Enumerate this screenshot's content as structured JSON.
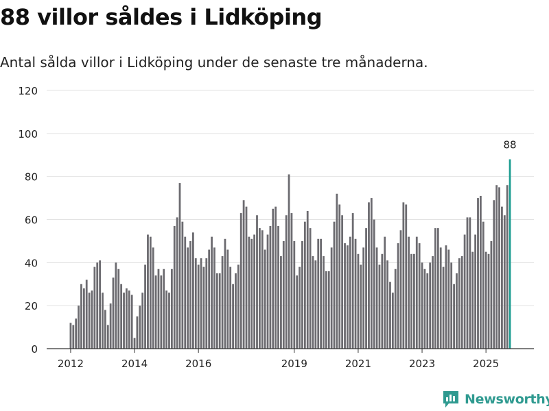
{
  "header": {
    "title": "88 villor såldes i Lidköping",
    "subtitle": "Antal sålda villor i Lidköping under de senaste tre månaderna."
  },
  "brand": {
    "name": "Newsworthy",
    "icon": "newsworthy-logo-icon",
    "color": "#2f9a90"
  },
  "colors": {
    "bar": "#6c6b70",
    "highlight": "#1f9e92",
    "grid": "#e3e3e3",
    "axis": "#333333"
  },
  "chart_data": {
    "type": "bar",
    "title": "88 villor såldes i Lidköping",
    "xlabel": "",
    "ylabel": "",
    "ylim": [
      0,
      120
    ],
    "yticks": [
      0,
      20,
      40,
      60,
      80,
      100,
      120
    ],
    "x_start": "2012-01",
    "x_ticks": [
      {
        "label": "2012",
        "index": 0
      },
      {
        "label": "2014",
        "index": 24
      },
      {
        "label": "2016",
        "index": 48
      },
      {
        "label": "2019",
        "index": 84
      },
      {
        "label": "2021",
        "index": 108
      },
      {
        "label": "2023",
        "index": 132
      },
      {
        "label": "2025",
        "index": 156
      }
    ],
    "highlight_label": "88",
    "values": [
      12,
      11,
      14,
      20,
      30,
      28,
      32,
      26,
      27,
      38,
      40,
      41,
      26,
      18,
      11,
      21,
      33,
      40,
      37,
      30,
      26,
      28,
      27,
      25,
      5,
      15,
      20,
      26,
      39,
      53,
      52,
      47,
      34,
      37,
      34,
      37,
      27,
      26,
      37,
      57,
      61,
      77,
      59,
      52,
      47,
      50,
      54,
      42,
      39,
      42,
      38,
      42,
      46,
      52,
      47,
      35,
      35,
      43,
      51,
      46,
      38,
      30,
      35,
      39,
      63,
      69,
      66,
      52,
      51,
      53,
      62,
      56,
      55,
      46,
      53,
      57,
      65,
      66,
      57,
      43,
      50,
      62,
      81,
      63,
      50,
      34,
      38,
      50,
      59,
      64,
      56,
      43,
      41,
      51,
      51,
      43,
      36,
      36,
      47,
      59,
      72,
      67,
      62,
      49,
      48,
      52,
      63,
      51,
      44,
      39,
      47,
      56,
      68,
      70,
      60,
      47,
      39,
      44,
      52,
      41,
      31,
      26,
      37,
      49,
      55,
      68,
      67,
      52,
      44,
      44,
      52,
      49,
      40,
      37,
      35,
      40,
      43,
      56,
      56,
      47,
      38,
      48,
      46,
      40,
      30,
      35,
      42,
      43,
      53,
      61,
      61,
      45,
      53,
      70,
      71,
      59,
      45,
      44,
      50,
      69,
      76,
      75,
      66,
      62,
      76,
      88
    ]
  }
}
